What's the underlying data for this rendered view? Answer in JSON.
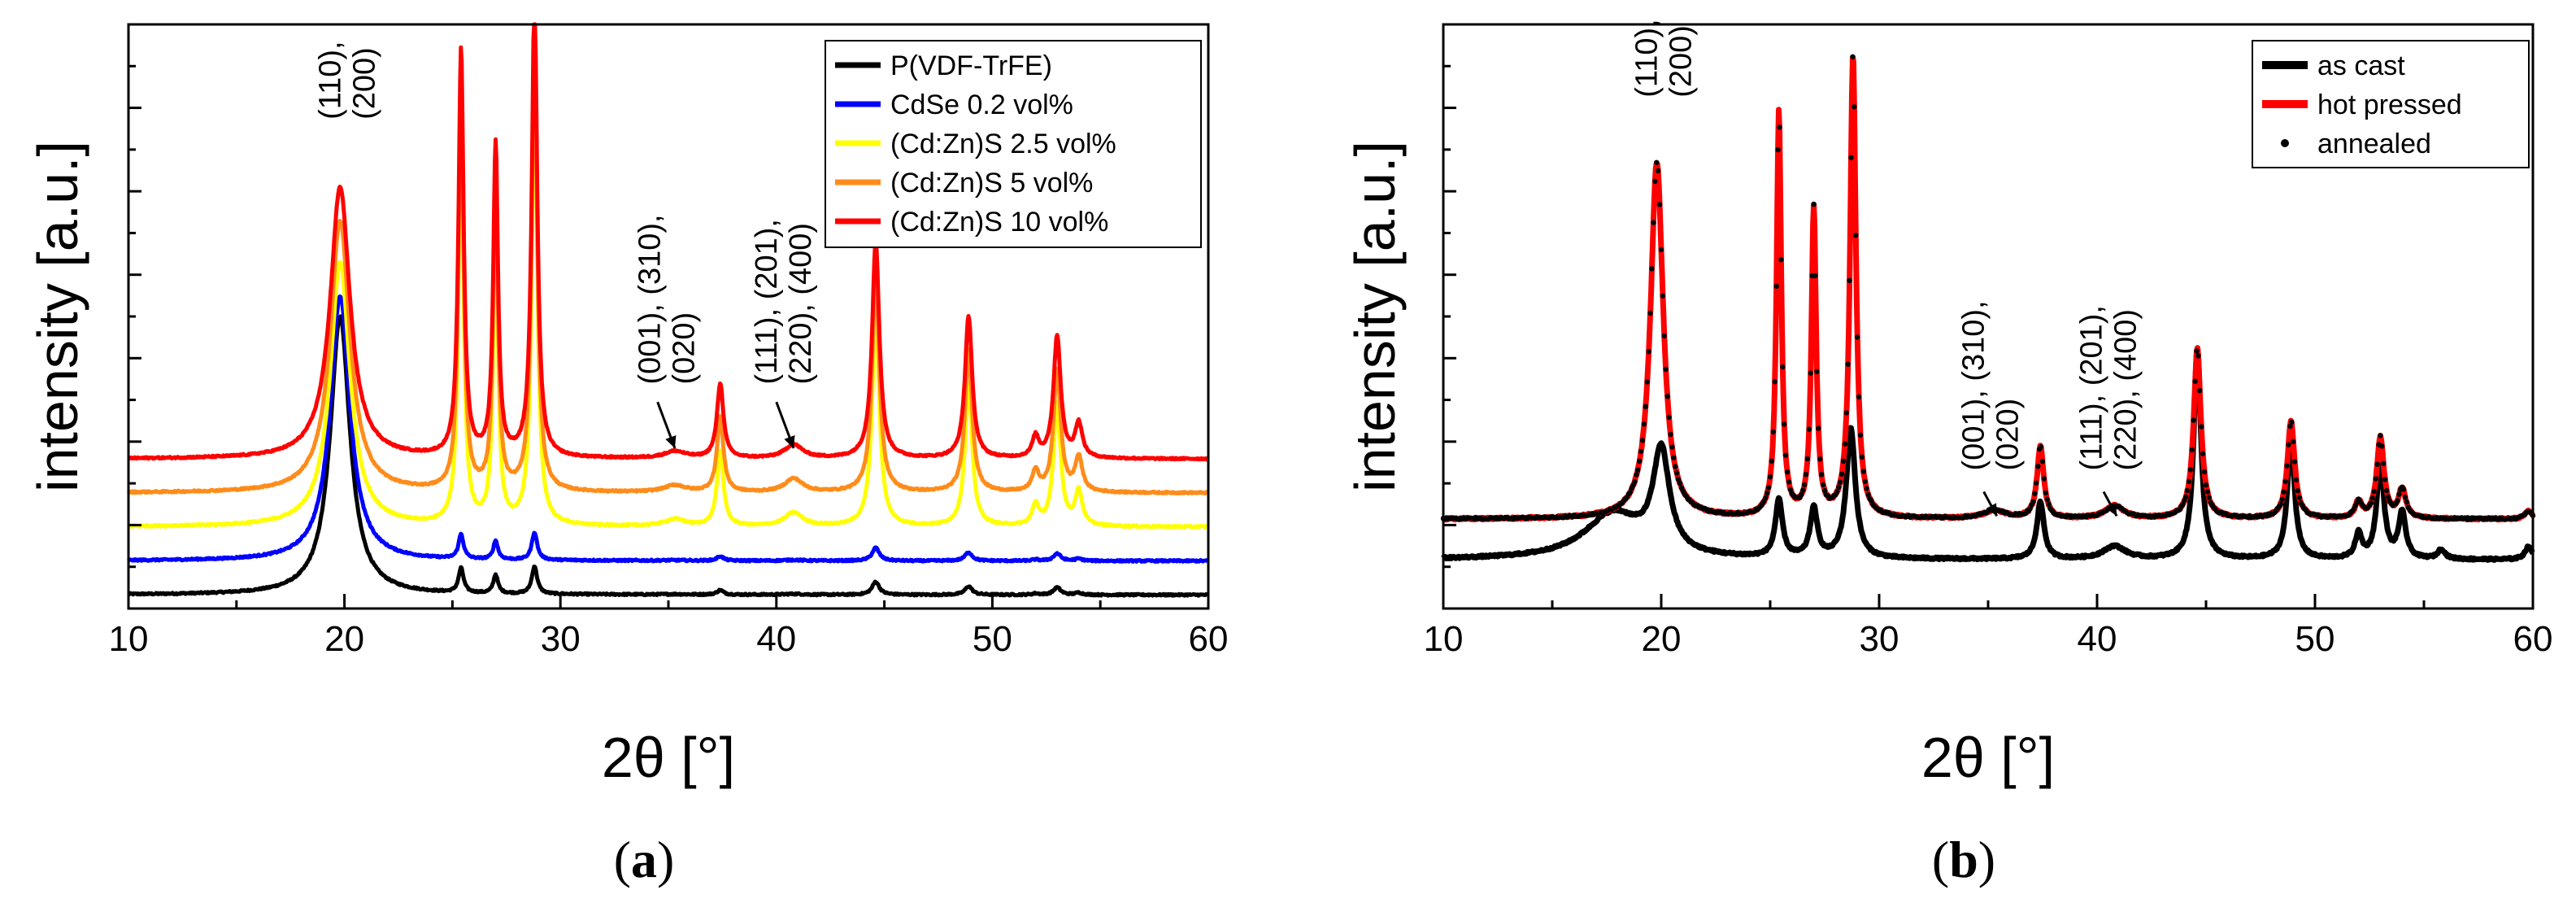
{
  "chart_data": [
    {
      "panel_label_open": "(",
      "panel_label_letter": "a",
      "panel_label_close": ")",
      "type": "line",
      "xlabel": "2θ [°]",
      "ylabel": "intensity [a.u.]",
      "xlim": [
        10,
        60
      ],
      "xticks": [
        10,
        20,
        30,
        40,
        50,
        60
      ],
      "ylim": [
        -0.1,
        4.2
      ],
      "yticks_minor_count": 14,
      "legend_position": "top-right",
      "series": [
        {
          "name": "P(VDF-TrFE)",
          "color": "#000000",
          "offset": 0.0,
          "scale": 0.0,
          "p110": 2.05
        },
        {
          "name": "CdSe 0.2 vol%",
          "color": "#0000ff",
          "offset": 0.25,
          "scale": 0.0,
          "p110": 1.95
        },
        {
          "name": "(Cd:Zn)S 2.5 vol%",
          "color": "#ffff00",
          "offset": 0.5,
          "scale": 1.0,
          "p110": 1.95
        },
        {
          "name": "(Cd:Zn)S 5 vol%",
          "color": "#ff8c1a",
          "offset": 0.75,
          "scale": 1.0,
          "p110": 2.0
        },
        {
          "name": "(Cd:Zn)S 10 vol%",
          "color": "#ff0000",
          "offset": 1.0,
          "scale": 1.0,
          "p110": 2.0
        }
      ],
      "peaks": [
        {
          "pos": 19.8,
          "height": 1.0,
          "width": 0.55
        },
        {
          "pos": 25.4,
          "height": 3.0,
          "width": 0.14
        },
        {
          "pos": 27.0,
          "height": 2.3,
          "width": 0.13
        },
        {
          "pos": 28.8,
          "height": 3.4,
          "width": 0.15
        },
        {
          "pos": 35.3,
          "height": 0.05,
          "width": 0.6
        },
        {
          "pos": 37.4,
          "height": 0.55,
          "width": 0.18
        },
        {
          "pos": 40.8,
          "height": 0.1,
          "width": 0.5
        },
        {
          "pos": 44.6,
          "height": 1.6,
          "width": 0.2
        },
        {
          "pos": 48.9,
          "height": 1.05,
          "width": 0.2
        },
        {
          "pos": 52.0,
          "height": 0.15,
          "width": 0.18
        },
        {
          "pos": 53.0,
          "height": 0.9,
          "width": 0.2
        },
        {
          "pos": 54.0,
          "height": 0.25,
          "width": 0.2
        }
      ],
      "annotations": [
        {
          "id": "a-110",
          "line1": "(110),",
          "line2": "(200)",
          "x": 19.8,
          "y": 3.5
        },
        {
          "id": "a-001",
          "line1": "(001), (310),",
          "line2": "(020)",
          "x": 34.6,
          "y": 1.55
        },
        {
          "id": "a-111",
          "line1": "(111), (201),",
          "line2": "(220), (400)",
          "x": 40.0,
          "y": 1.55
        }
      ],
      "arrows": [
        {
          "from": [
            34.5,
            1.42
          ],
          "to": [
            35.3,
            1.08
          ]
        },
        {
          "from": [
            40.0,
            1.42
          ],
          "to": [
            40.8,
            1.08
          ]
        }
      ]
    },
    {
      "panel_label_open": "(",
      "panel_label_letter": "b",
      "panel_label_close": ")",
      "type": "line",
      "xlabel": "2θ [°]",
      "ylabel": "intensity [a.u.]",
      "xlim": [
        10,
        60
      ],
      "xticks": [
        10,
        20,
        30,
        40,
        50,
        60
      ],
      "ylim": [
        -0.3,
        3.3
      ],
      "legend_position": "top-right",
      "series": [
        {
          "name": "as cast",
          "color": "#000000",
          "offset": 0.0,
          "style": "line"
        },
        {
          "name": "hot pressed",
          "color": "#ff0000",
          "offset": 0.25,
          "style": "line"
        },
        {
          "name": "annealed",
          "color": "#000000",
          "offset": 0.25,
          "style": "dots"
        }
      ],
      "peaks_as_cast": [
        {
          "pos": 17.8,
          "height": 0.28,
          "width": 1.6
        },
        {
          "pos": 20.0,
          "height": 0.62,
          "width": 0.45
        },
        {
          "pos": 25.4,
          "height": 0.35,
          "width": 0.2
        },
        {
          "pos": 27.0,
          "height": 0.3,
          "width": 0.2
        },
        {
          "pos": 28.7,
          "height": 0.8,
          "width": 0.25
        },
        {
          "pos": 37.4,
          "height": 0.35,
          "width": 0.2
        },
        {
          "pos": 40.8,
          "height": 0.08,
          "width": 0.6
        },
        {
          "pos": 44.6,
          "height": 1.3,
          "width": 0.2
        },
        {
          "pos": 48.9,
          "height": 0.75,
          "width": 0.2
        },
        {
          "pos": 52.0,
          "height": 0.15,
          "width": 0.18
        },
        {
          "pos": 53.0,
          "height": 0.6,
          "width": 0.2
        },
        {
          "pos": 54.0,
          "height": 0.28,
          "width": 0.2
        },
        {
          "pos": 55.8,
          "height": 0.06,
          "width": 0.2
        },
        {
          "pos": 59.8,
          "height": 0.08,
          "width": 0.2
        }
      ],
      "peaks_hot_pressed": [
        {
          "pos": 19.8,
          "height": 2.2,
          "width": 0.35
        },
        {
          "pos": 25.4,
          "height": 2.5,
          "width": 0.13
        },
        {
          "pos": 27.0,
          "height": 1.9,
          "width": 0.13
        },
        {
          "pos": 28.8,
          "height": 2.85,
          "width": 0.16
        },
        {
          "pos": 35.3,
          "height": 0.05,
          "width": 0.6
        },
        {
          "pos": 37.4,
          "height": 0.45,
          "width": 0.18
        },
        {
          "pos": 40.8,
          "height": 0.08,
          "width": 0.5
        },
        {
          "pos": 44.6,
          "height": 1.05,
          "width": 0.2
        },
        {
          "pos": 48.9,
          "height": 0.6,
          "width": 0.2
        },
        {
          "pos": 52.0,
          "height": 0.1,
          "width": 0.18
        },
        {
          "pos": 53.0,
          "height": 0.5,
          "width": 0.2
        },
        {
          "pos": 54.0,
          "height": 0.18,
          "width": 0.2
        },
        {
          "pos": 59.8,
          "height": 0.05,
          "width": 0.2
        }
      ],
      "annotations": [
        {
          "id": "b-110",
          "line1": "(110),",
          "line2": "(200)",
          "x": 19.8,
          "y": 2.85
        },
        {
          "id": "b-001",
          "line1": "(001), (310),",
          "line2": "(020)",
          "x": 34.8,
          "y": 0.55
        },
        {
          "id": "b-111",
          "line1": "(111), (201),",
          "line2": "(220), (400)",
          "x": 40.2,
          "y": 0.55
        }
      ],
      "arrows": [
        {
          "from": [
            34.8,
            0.42
          ],
          "to": [
            35.4,
            0.27
          ]
        },
        {
          "from": [
            40.3,
            0.42
          ],
          "to": [
            40.9,
            0.27
          ]
        }
      ]
    }
  ]
}
